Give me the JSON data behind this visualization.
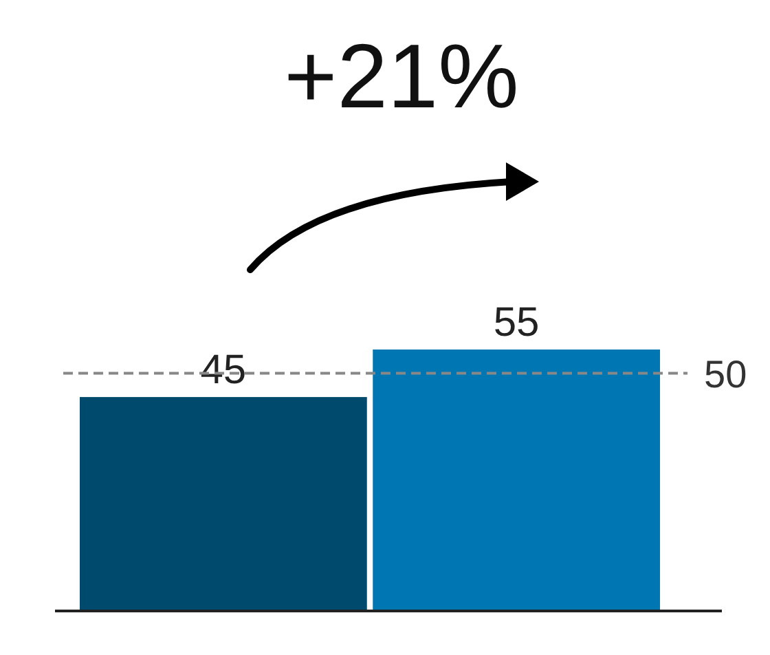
{
  "chart_data": {
    "type": "bar",
    "title": "+21%",
    "categories": [
      null,
      null
    ],
    "values": [
      45,
      55
    ],
    "colors": [
      "#004a6e",
      "#0077b2"
    ],
    "data_labels": true,
    "ref_lines": [
      {
        "axis": "y",
        "value": 50,
        "label": "50",
        "color": "#888888",
        "line_style": "dashed"
      }
    ]
  }
}
